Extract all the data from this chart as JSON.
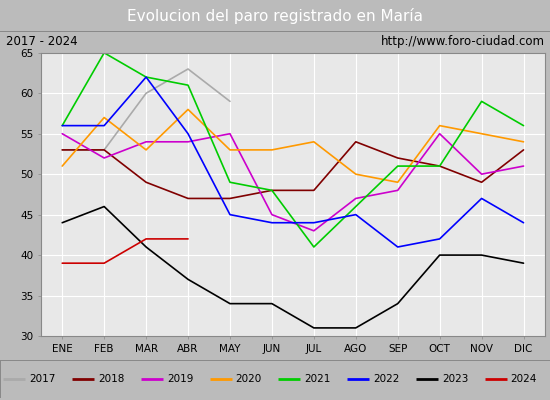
{
  "title": "Evolucion del paro registrado en María",
  "subtitle_left": "2017 - 2024",
  "subtitle_right": "http://www.foro-ciudad.com",
  "months": [
    "ENE",
    "FEB",
    "MAR",
    "ABR",
    "MAY",
    "JUN",
    "JUL",
    "AGO",
    "SEP",
    "OCT",
    "NOV",
    "DIC"
  ],
  "ylim": [
    30,
    65
  ],
  "yticks": [
    30,
    35,
    40,
    45,
    50,
    55,
    60,
    65
  ],
  "series": {
    "2017": {
      "color": "#aaaaaa",
      "values": [
        53,
        53,
        60,
        63,
        59,
        null,
        null,
        null,
        null,
        null,
        null,
        null
      ]
    },
    "2018": {
      "color": "#800000",
      "values": [
        53,
        53,
        49,
        47,
        47,
        48,
        48,
        54,
        52,
        51,
        49,
        53
      ]
    },
    "2019": {
      "color": "#cc00cc",
      "values": [
        55,
        52,
        54,
        54,
        55,
        45,
        43,
        47,
        48,
        55,
        50,
        51
      ]
    },
    "2020": {
      "color": "#ff9900",
      "values": [
        51,
        57,
        53,
        58,
        53,
        53,
        54,
        50,
        49,
        56,
        55,
        54
      ]
    },
    "2021": {
      "color": "#00cc00",
      "values": [
        56,
        65,
        62,
        61,
        49,
        48,
        41,
        46,
        51,
        51,
        59,
        56
      ]
    },
    "2022": {
      "color": "#0000ff",
      "values": [
        56,
        56,
        62,
        55,
        45,
        44,
        44,
        45,
        41,
        42,
        47,
        44
      ]
    },
    "2023": {
      "color": "#000000",
      "values": [
        44,
        46,
        41,
        37,
        34,
        34,
        31,
        31,
        34,
        40,
        40,
        39
      ]
    },
    "2024": {
      "color": "#cc0000",
      "values": [
        39,
        39,
        42,
        42,
        null,
        null,
        null,
        null,
        null,
        null,
        null,
        null
      ]
    }
  },
  "title_bgcolor": "#4477cc",
  "title_color": "white",
  "subtitle_bgcolor": "#dddddd",
  "plot_bgcolor": "#e8e8e8",
  "grid_color": "white",
  "legend_bgcolor": "#dddddd",
  "outer_bgcolor": "#bbbbbb"
}
